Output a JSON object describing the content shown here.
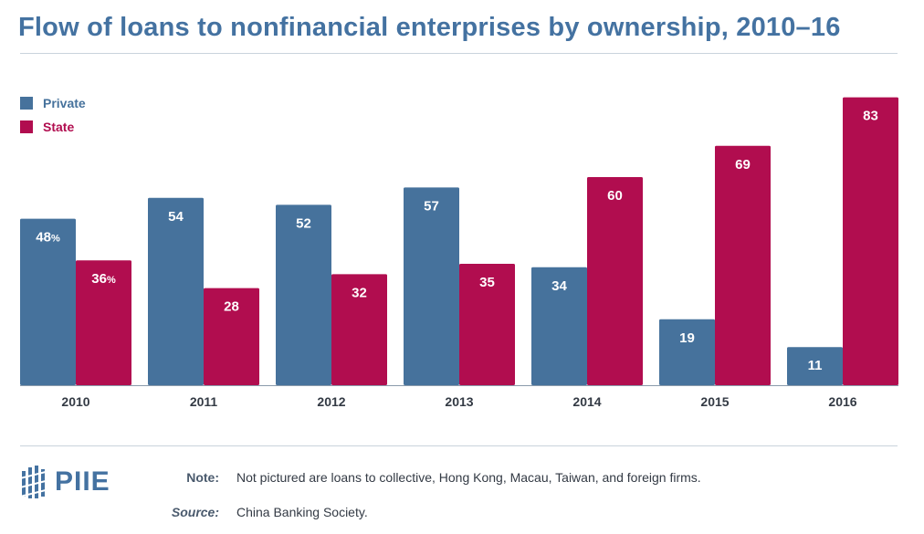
{
  "title": "Flow of loans to nonfinancial enterprises by ownership, 2010–16",
  "colors": {
    "private": "#46729c",
    "state": "#b10d4f",
    "title": "#4472a1"
  },
  "chart_data": {
    "type": "bar",
    "title": "Flow of loans to nonfinancial enterprises by ownership, 2010–16",
    "categories": [
      "2010",
      "2011",
      "2012",
      "2013",
      "2014",
      "2015",
      "2016"
    ],
    "series": [
      {
        "name": "Private",
        "values": [
          48,
          54,
          52,
          57,
          34,
          19,
          11
        ],
        "labels": [
          "48%",
          "54",
          "52",
          "57",
          "34",
          "19",
          "11"
        ]
      },
      {
        "name": "State",
        "values": [
          36,
          28,
          32,
          35,
          60,
          69,
          83
        ],
        "labels": [
          "36%",
          "28",
          "32",
          "35",
          "60",
          "69",
          "83"
        ]
      }
    ],
    "unit": "%",
    "legend": "top-left",
    "grid": false
  },
  "footer": {
    "logo": "PIIE",
    "note_label": "Note:",
    "note_text": "Not pictured are loans to collective, Hong Kong, Macau, Taiwan, and foreign firms.",
    "source_label": "Source:",
    "source_text": "China Banking Society."
  }
}
